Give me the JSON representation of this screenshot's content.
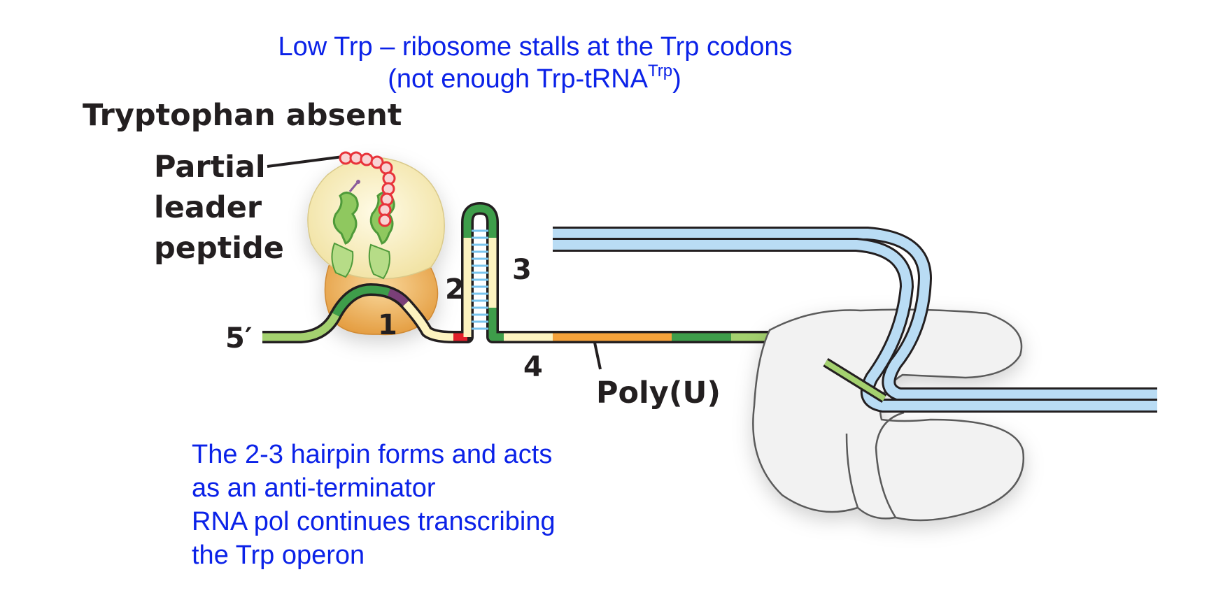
{
  "caption_top": {
    "line1": "Low Trp – ribosome stalls at the Trp codons",
    "line2_prefix": "(not enough Trp-tRNA",
    "line2_sup": "Trp",
    "line2_suffix": ")"
  },
  "diagram": {
    "condition_title": "Tryptophan absent",
    "peptide_label": [
      "Partial",
      "leader",
      "peptide"
    ],
    "five_prime": "5′",
    "region_1": "1",
    "region_2": "2",
    "region_3": "3",
    "region_4": "4",
    "polyu": "Poly(U)",
    "colors": {
      "rna_region_green": "#6ab04c",
      "rna_dark_green": "#3e9d4a",
      "rna_cream": "#fdf3c0",
      "rna_orange": "#f5a23a",
      "trp_codon": "#7a3f78",
      "stop_codon_red": "#e2202a",
      "ribosome_large": "#fbf2c8",
      "ribosome_small": "#f2b05c",
      "peptide_red": "#e8333a",
      "dna_blue": "#b9dcf4",
      "polymerase": "#f2f2f2",
      "caption_blue": "#0b22e8"
    },
    "icons": [
      "ribosome-icon",
      "rna-polymerase-icon",
      "dna-strand-icon",
      "trna-icon"
    ]
  },
  "caption_bottom": {
    "lines": [
      "The 2-3 hairpin forms and acts",
      "as an anti-terminator",
      "RNA pol continues transcribing",
      "the Trp operon"
    ]
  }
}
